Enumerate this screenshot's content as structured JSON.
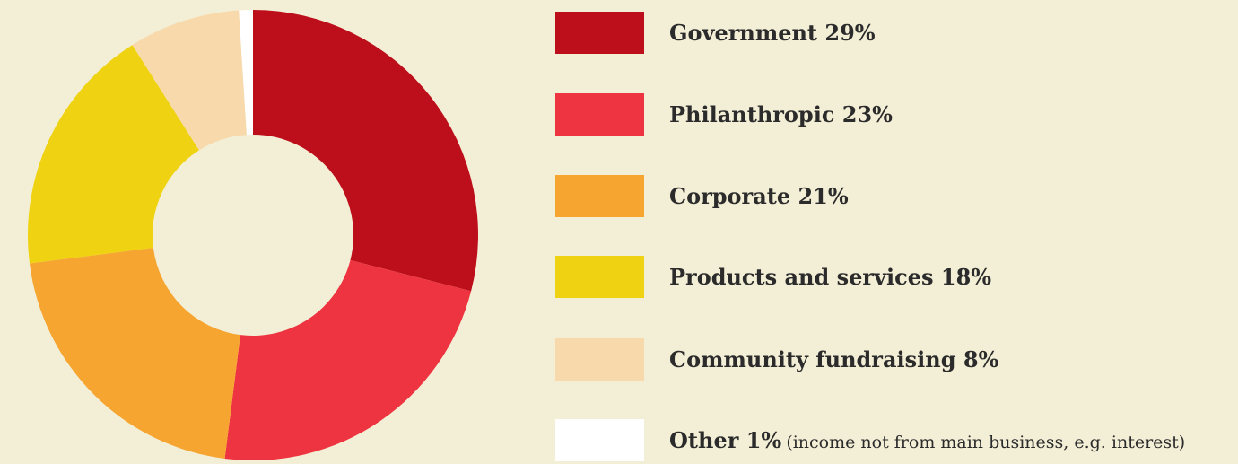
{
  "chart_data": {
    "type": "pie",
    "style": "donut",
    "legend_position": "right",
    "categories": [
      "Government",
      "Philanthropic",
      "Corporate",
      "Products and services",
      "Community fundraising",
      "Other"
    ],
    "values": [
      29,
      23,
      21,
      18,
      8,
      1
    ],
    "unit": "%",
    "colors": [
      "#bd0f1b",
      "#ee3440",
      "#f6a531",
      "#efd211",
      "#f8d9ab",
      "#ffffff"
    ],
    "legend": [
      {
        "label": "Government 29%",
        "color": "#bd0f1b"
      },
      {
        "label": "Philanthropic 23%",
        "color": "#ee3440"
      },
      {
        "label": "Corporate 21%",
        "color": "#f6a531"
      },
      {
        "label": "Products and services 18%",
        "color": "#efd211"
      },
      {
        "label": "Community fundraising 8%",
        "color": "#f8d9ab"
      },
      {
        "label": "Other 1%",
        "note": "(income not from main business, e.g. interest)",
        "color": "#ffffff"
      }
    ]
  }
}
